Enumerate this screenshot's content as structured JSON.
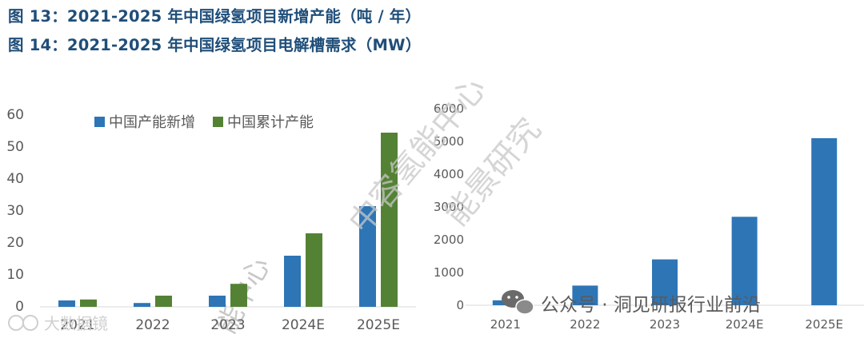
{
  "headings": {
    "fig13": "图 13：2021-2025 年中国绿氢项目新增产能（吨 / 年）",
    "fig14": "图 14：2021-2025 年中国绿氢项目电解槽需求（MW）"
  },
  "colors": {
    "blue": "#2e75b6",
    "green": "#548235",
    "axis_text": "#595959",
    "heading": "#1f4e79"
  },
  "watermarks": {
    "org_line1": "中容氢能中心",
    "org_line2": "能景研究",
    "org_lower": "能中心",
    "wechat": "公众号 · 洞见研报行业前沿",
    "corner": "大数据镜"
  },
  "chart_data": [
    {
      "type": "bar",
      "categories": [
        "2021",
        "2022",
        "2023",
        "2024E",
        "2025E"
      ],
      "series": [
        {
          "name": "中国产能新增",
          "values": [
            2,
            1.2,
            3.5,
            16,
            31.5
          ],
          "color": "#2e75b6"
        },
        {
          "name": "中国累计产能",
          "values": [
            2.3,
            3.5,
            7.2,
            23,
            54.5
          ],
          "color": "#548235"
        }
      ],
      "ylim": [
        0,
        60
      ],
      "yticks": [
        "0",
        "10",
        "20",
        "30",
        "40",
        "50",
        "60"
      ],
      "legend": "top",
      "grid": false
    },
    {
      "type": "bar",
      "categories": [
        "2021",
        "2022",
        "2023",
        "2024E",
        "2025E"
      ],
      "values": [
        150,
        600,
        1400,
        2700,
        5100
      ],
      "color": "#2e75b6",
      "ylim": [
        0,
        6000
      ],
      "yticks": [
        "0",
        "1000",
        "2000",
        "3000",
        "4000",
        "5000",
        "6000"
      ],
      "grid": false
    }
  ]
}
